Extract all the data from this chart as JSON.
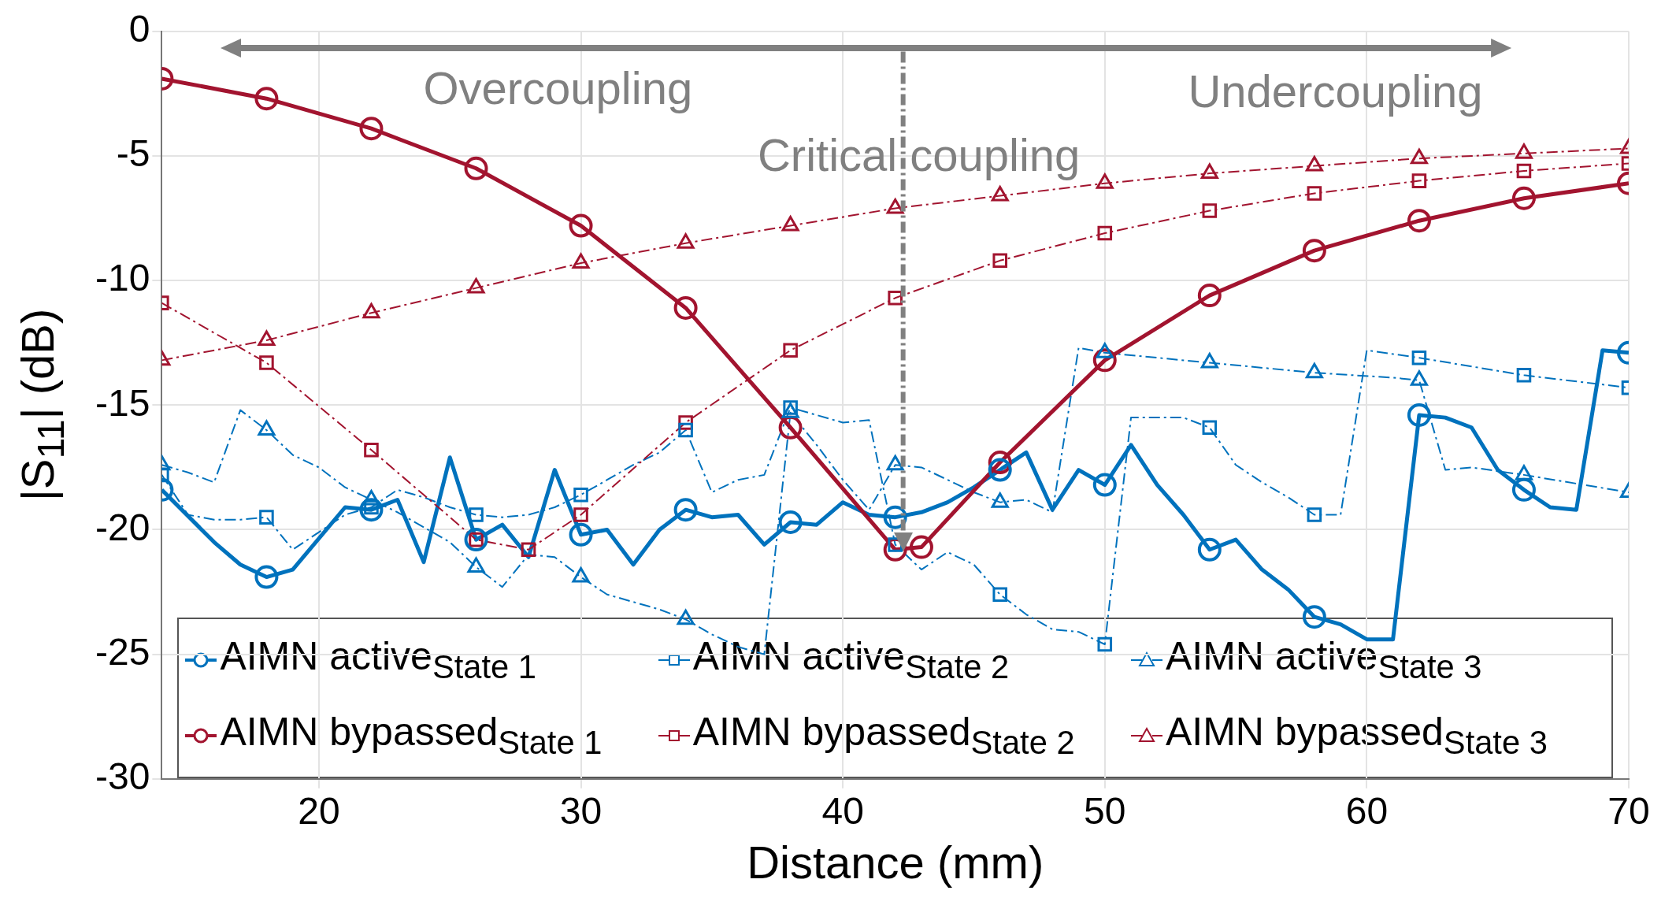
{
  "chart_data": {
    "type": "line",
    "xlabel": "Distance (mm)",
    "ylabel": "|S$_{11}$| (dB)",
    "xlim": [
      14,
      70
    ],
    "xticks": [
      20,
      30,
      40,
      50,
      60,
      70
    ],
    "ylim": [
      -30,
      0
    ],
    "yticks": [
      -30,
      -25,
      -20,
      -15,
      -10,
      -5,
      0
    ],
    "grid": true,
    "legend": "bottom",
    "annotations": [
      "Overcoupling",
      "Undercoupling"
    ],
    "ref_lines": [
      {
        "axis": "x",
        "value": 42.3,
        "label": "Critical coupling",
        "color": "#808080",
        "line_style": "dashed"
      }
    ],
    "series": [
      {
        "name": "AIMN active$_{State 1}$",
        "type": "scatter",
        "color": "#0072bd",
        "marker": "circle",
        "line_style": "solid",
        "x": [
          14,
          18,
          22,
          26,
          30,
          34,
          38,
          42,
          46,
          50,
          54,
          58,
          62,
          66,
          70
        ],
        "values": [
          -18.4,
          -21.9,
          -19.2,
          -20.4,
          -20.2,
          -19.2,
          -19.7,
          -19.5,
          -17.6,
          -18.2,
          -20.8,
          -23.5,
          -15.4,
          -18.4,
          -12.9
        ]
      },
      {
        "name": "AIMN active$_{State 2}$",
        "type": "scatter",
        "color": "#0072bd",
        "marker": "square",
        "line_style": "dashed",
        "x": [
          14,
          18,
          22,
          26,
          30,
          34,
          38,
          42,
          46,
          50,
          54,
          58,
          62,
          66,
          70
        ],
        "values": [
          -17.8,
          -19.5,
          -19.1,
          -19.4,
          -18.6,
          -16.0,
          -15.1,
          -20.6,
          -22.6,
          -24.6,
          -15.9,
          -19.4,
          -13.1,
          -13.8,
          -14.3
        ]
      },
      {
        "name": "AIMN active$_{State 3}$",
        "type": "scatter",
        "color": "#0072bd",
        "marker": "triangle",
        "line_style": "dashed",
        "x": [
          14,
          18,
          22,
          26,
          30,
          34,
          38,
          42,
          46,
          50,
          54,
          58,
          62,
          66,
          70
        ],
        "values": [
          -17.4,
          -16.0,
          -18.8,
          -21.5,
          -21.9,
          -23.6,
          -15.3,
          -17.4,
          -18.9,
          -12.9,
          -13.3,
          -13.7,
          -14.0,
          -17.8,
          -18.5
        ]
      },
      {
        "name": "AIMN bypassed$_{State 1}$",
        "color": "#a2142f",
        "marker": "circle",
        "line_style": "solid",
        "x": [
          14,
          18,
          22,
          26,
          30,
          34,
          38,
          42,
          43,
          46,
          50,
          54,
          58,
          62,
          66,
          70
        ],
        "values": [
          -1.9,
          -2.7,
          -3.9,
          -5.5,
          -7.8,
          -11.1,
          -15.9,
          -20.8,
          -20.7,
          -17.3,
          -13.2,
          -10.6,
          -8.8,
          -7.6,
          -6.7,
          -6.1
        ]
      },
      {
        "name": "AIMN bypassed$_{State 2}$",
        "color": "#a2142f",
        "marker": "square",
        "line_style": "dashed",
        "x": [
          14,
          18,
          22,
          26,
          28,
          30,
          34,
          38,
          42,
          46,
          50,
          54,
          58,
          62,
          66,
          70
        ],
        "values": [
          -10.9,
          -13.3,
          -16.8,
          -20.4,
          -20.8,
          -19.4,
          -15.7,
          -12.8,
          -10.7,
          -9.2,
          -8.1,
          -7.2,
          -6.5,
          -6.0,
          -5.6,
          -5.3
        ]
      },
      {
        "name": "AIMN bypassed$_{State 3}$",
        "color": "#a2142f",
        "marker": "triangle",
        "line_style": "dashed",
        "x": [
          14,
          18,
          22,
          26,
          30,
          34,
          38,
          42,
          46,
          50,
          54,
          58,
          62,
          66,
          70
        ],
        "values": [
          -13.2,
          -12.4,
          -11.3,
          -10.3,
          -9.3,
          -8.5,
          -7.8,
          -7.1,
          -6.6,
          -6.1,
          -5.7,
          -5.4,
          -5.1,
          -4.9,
          -4.7
        ]
      },
      {
        "color": "#0072bd",
        "marker": "none",
        "line_style": "solid",
        "x": [
          14,
          16,
          17,
          18,
          19,
          21,
          22,
          23,
          24,
          25,
          26,
          27,
          28,
          29,
          30,
          31,
          32,
          33,
          34,
          35,
          36,
          37,
          38,
          39,
          40,
          41,
          42,
          43,
          44,
          45,
          46,
          47,
          48,
          49,
          50,
          51,
          52,
          53,
          54,
          55,
          56,
          57,
          58,
          59,
          60,
          61,
          62,
          63,
          64,
          65,
          66,
          67,
          68,
          69,
          70
        ],
        "values": [
          -18.4,
          -20.5,
          -21.4,
          -21.9,
          -21.6,
          -19.1,
          -19.2,
          -18.8,
          -21.3,
          -17.1,
          -20.4,
          -19.8,
          -21.1,
          -17.6,
          -20.2,
          -20.0,
          -21.4,
          -20.0,
          -19.2,
          -19.5,
          -19.4,
          -20.6,
          -19.7,
          -19.8,
          -18.9,
          -19.4,
          -19.5,
          -19.3,
          -18.9,
          -18.3,
          -17.6,
          -16.9,
          -19.2,
          -17.6,
          -18.2,
          -16.6,
          -18.2,
          -19.4,
          -20.8,
          -20.4,
          -21.6,
          -22.4,
          -23.5,
          -23.8,
          -24.4,
          -24.4,
          -15.4,
          -15.5,
          -15.9,
          -17.6,
          -18.4,
          -19.1,
          -19.2,
          -12.8,
          -12.9
        ]
      },
      {
        "color": "#0072bd",
        "marker": "none",
        "line_style": "dashed",
        "x": [
          14,
          15,
          16,
          17,
          18,
          19,
          20,
          21,
          22,
          23,
          24,
          25,
          26,
          27,
          28,
          29,
          30,
          31,
          32,
          33,
          34,
          35,
          36,
          37,
          38,
          39,
          40,
          41,
          42,
          43,
          44,
          45,
          46,
          47,
          48,
          49,
          50,
          51,
          52,
          53,
          54,
          55,
          56,
          57,
          58,
          59,
          60,
          62,
          66,
          70
        ],
        "values": [
          -17.8,
          -19.4,
          -19.6,
          -19.6,
          -19.5,
          -20.8,
          -20.1,
          -19.4,
          -19.1,
          -18.4,
          -18.7,
          -19.1,
          -19.4,
          -19.5,
          -19.4,
          -19.1,
          -18.6,
          -18.0,
          -17.4,
          -16.9,
          -16.0,
          -18.5,
          -18.0,
          -17.8,
          -15.1,
          -15.4,
          -15.7,
          -15.6,
          -20.6,
          -21.6,
          -20.9,
          -21.4,
          -22.6,
          -23.4,
          -24.0,
          -24.1,
          -24.6,
          -15.5,
          -15.5,
          -15.5,
          -15.9,
          -17.4,
          -18.1,
          -18.7,
          -19.4,
          -19.4,
          -12.8,
          -13.1,
          -13.8,
          -14.3
        ]
      },
      {
        "color": "#0072bd",
        "marker": "none",
        "line_style": "dashed",
        "x": [
          14,
          15,
          16,
          17,
          18,
          19,
          20,
          21,
          22,
          23,
          24,
          25,
          26,
          27,
          28,
          29,
          30,
          31,
          32,
          33,
          34,
          35,
          36,
          37,
          38,
          39,
          40,
          41,
          42,
          43,
          44,
          45,
          46,
          47,
          48,
          49,
          50,
          54,
          58,
          61,
          62,
          63,
          64,
          66,
          70
        ],
        "values": [
          -17.4,
          -17.7,
          -18.1,
          -15.2,
          -16.0,
          -17.0,
          -17.5,
          -18.3,
          -18.8,
          -19.3,
          -19.9,
          -20.5,
          -21.5,
          -22.3,
          -21.0,
          -21.1,
          -21.9,
          -22.6,
          -22.9,
          -23.2,
          -23.6,
          -24.2,
          -24.7,
          -25.0,
          -15.3,
          -16.6,
          -18.0,
          -19.2,
          -17.4,
          -17.5,
          -18.0,
          -18.5,
          -18.9,
          -18.8,
          -19.3,
          -12.7,
          -12.9,
          -13.3,
          -13.7,
          -13.9,
          -14.0,
          -17.6,
          -17.5,
          -17.8,
          -18.5
        ]
      }
    ]
  }
}
